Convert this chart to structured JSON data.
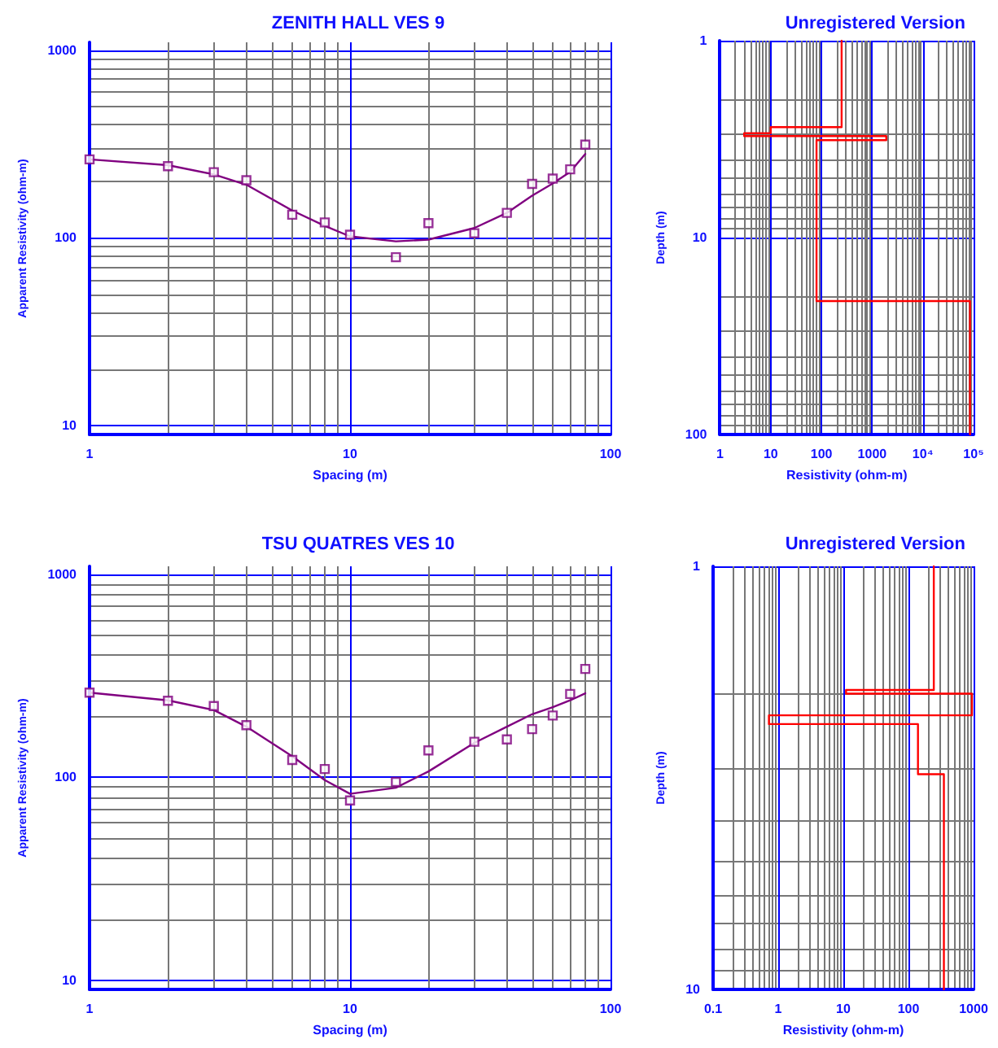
{
  "chart_data": [
    {
      "type": "scatter",
      "title": "ZENITH HALL VES 9",
      "xlabel": "Spacing (m)",
      "ylabel": "Apparent Resistivity (ohm-m)",
      "log": "xy",
      "grid": true,
      "xlim": [
        1,
        100
      ],
      "xticks": [
        1,
        10,
        100
      ],
      "ylim": [
        9,
        1100
      ],
      "yticks": [
        10,
        100,
        1000
      ],
      "series": [
        {
          "marker": "square",
          "color": "#800080",
          "x": [
            1,
            2,
            3,
            4,
            6,
            8,
            10,
            15,
            20,
            30,
            40,
            50,
            60,
            70,
            80
          ],
          "values": [
            262,
            241,
            224,
            203,
            133,
            121,
            104,
            79,
            120,
            106,
            136,
            194,
            207,
            232,
            314
          ]
        },
        {
          "type": "line",
          "marker": "none",
          "color": "#800080",
          "x": [
            1,
            2,
            3,
            4,
            6,
            8,
            10,
            15,
            20,
            30,
            40,
            50,
            60,
            70,
            80
          ],
          "values": [
            262,
            244,
            218,
            192,
            140,
            116,
            102,
            96,
            98,
            113,
            136,
            168,
            195,
            225,
            280
          ]
        }
      ]
    },
    {
      "type": "line",
      "title": "Unregistered Version",
      "xlabel": "Resistivity (ohm-m)",
      "ylabel": "Depth (m)",
      "log": "xy",
      "grid": true,
      "xlim": [
        1,
        100000
      ],
      "xticks": [
        1,
        10,
        100,
        1000,
        {
          "value": 10000,
          "label": "10⁴"
        },
        {
          "value": 100000,
          "label": "10⁵"
        }
      ],
      "ylim": [
        100,
        1
      ],
      "yticks": [
        1,
        10,
        100
      ],
      "series": [
        {
          "marker": "none",
          "color": "#ff0000",
          "x": [
            250,
            250,
            10,
            10,
            3,
            3,
            1900,
            1900,
            80,
            80,
            85000,
            85000
          ],
          "values": [
            1,
            2.75,
            2.75,
            2.95,
            2.95,
            3.05,
            3.05,
            3.2,
            3.2,
            21,
            21,
            100
          ]
        }
      ]
    },
    {
      "type": "scatter",
      "title": "TSU QUATRES VES 10",
      "xlabel": "Spacing (m)",
      "ylabel": "Apparent Resistivity (ohm-m)",
      "log": "xy",
      "grid": true,
      "xlim": [
        1,
        100
      ],
      "xticks": [
        1,
        10,
        100
      ],
      "ylim": [
        9,
        1100
      ],
      "yticks": [
        10,
        100,
        1000
      ],
      "series": [
        {
          "marker": "square",
          "color": "#800080",
          "x": [
            1,
            2,
            3,
            4,
            6,
            8,
            10,
            15,
            20,
            30,
            40,
            50,
            60,
            70,
            80
          ],
          "values": [
            262,
            239,
            225,
            181,
            122,
            110,
            77,
            95,
            136,
            150,
            154,
            173,
            202,
            258,
            343
          ]
        },
        {
          "type": "line",
          "marker": "none",
          "color": "#800080",
          "x": [
            1,
            2,
            3,
            4,
            6,
            8,
            10,
            15,
            20,
            30,
            40,
            50,
            60,
            70,
            80
          ],
          "values": [
            262,
            240,
            215,
            178,
            127,
            97,
            83,
            89,
            107,
            148,
            178,
            205,
            222,
            240,
            260
          ]
        }
      ]
    },
    {
      "type": "line",
      "title": "Unregistered Version",
      "xlabel": "Resistivity (ohm-m)",
      "ylabel": "Depth (m)",
      "log": "xy",
      "grid": true,
      "xlim": [
        0.1,
        1000
      ],
      "xticks": [
        0.1,
        1,
        10,
        100,
        1000
      ],
      "ylim": [
        10,
        1
      ],
      "yticks": [
        1,
        10
      ],
      "series": [
        {
          "marker": "none",
          "color": "#ff0000",
          "x": [
            245,
            245,
            11,
            11,
            944,
            944,
            0.72,
            0.72,
            140,
            140,
            350,
            350
          ],
          "values": [
            1,
            1.96,
            1.96,
            2.0,
            2.0,
            2.25,
            2.25,
            2.36,
            2.36,
            3.1,
            3.1,
            10
          ]
        }
      ]
    }
  ]
}
